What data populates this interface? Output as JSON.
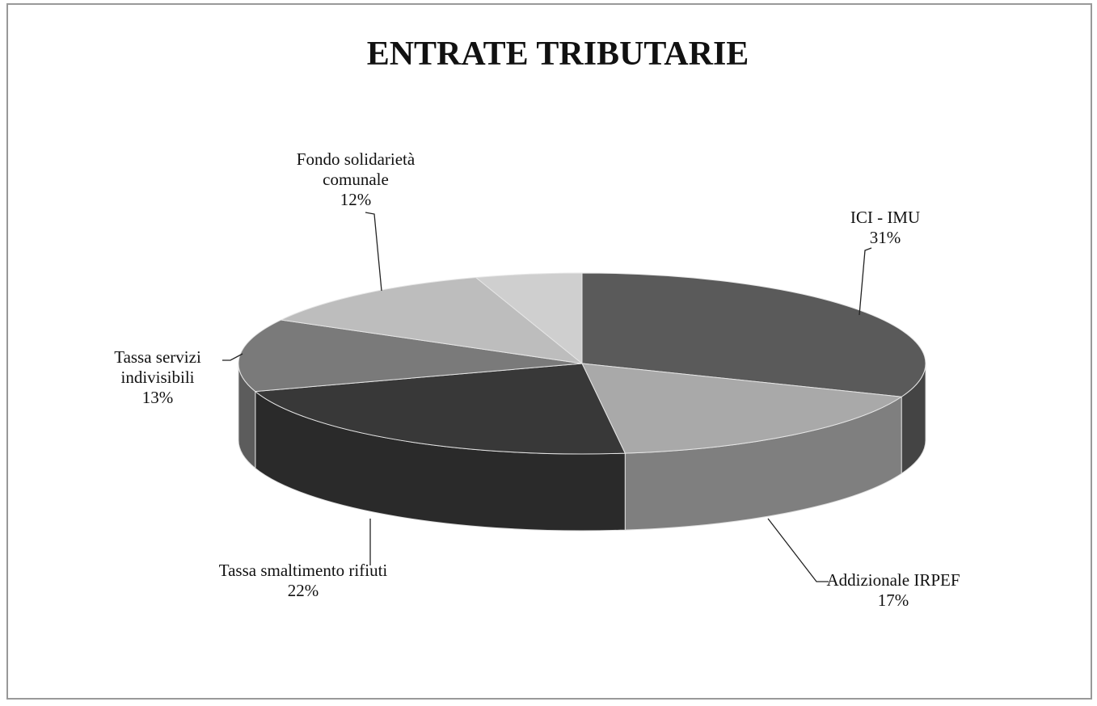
{
  "chart_data": {
    "type": "pie3d",
    "title": "ENTRATE TRIBUTARIE",
    "categories": [
      "ICI - IMU",
      "Addizionale IRPEF",
      "Tassa smaltimento rifiuti",
      "Tassa servizi indivisibili",
      "Fondo solidarietà comunale",
      null
    ],
    "values": [
      31,
      17,
      22,
      13,
      12,
      5
    ],
    "value_labels": [
      "31%",
      "17%",
      "22%",
      "13%",
      "12%",
      null
    ],
    "colors": [
      "#5a5a5a",
      "#a9a9a9",
      "#383838",
      "#7a7a7a",
      "#bdbdbd",
      "#cfcfcf"
    ]
  }
}
